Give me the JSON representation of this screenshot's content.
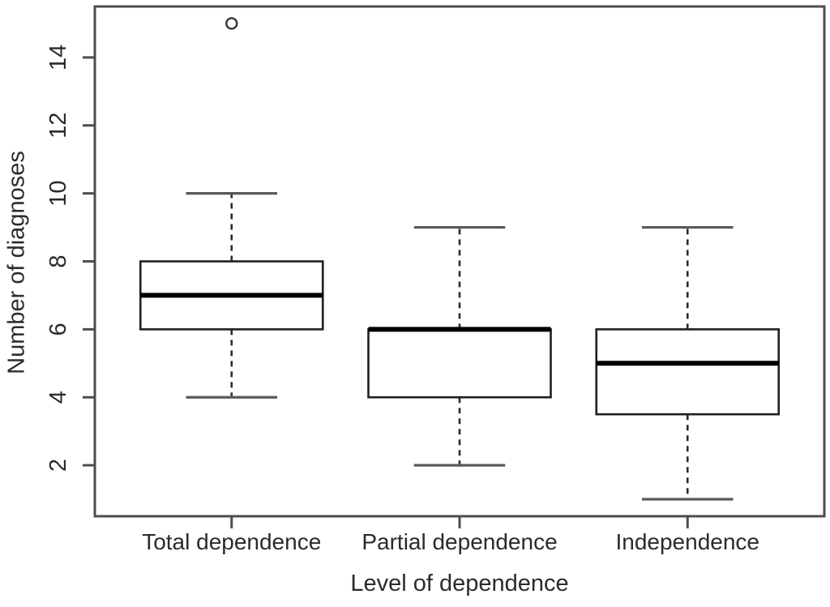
{
  "chart_data": {
    "type": "boxplot",
    "title": "",
    "xlabel": "Level of dependence",
    "ylabel": "Number of diagnoses",
    "categories": [
      "Total dependence",
      "Partial dependence",
      "Independence"
    ],
    "yticks": [
      2,
      4,
      6,
      8,
      10,
      12,
      14
    ],
    "ylim": [
      0.5,
      15.5
    ],
    "xlim": [
      0.4,
      3.6
    ],
    "positions": [
      1,
      2,
      3
    ],
    "box_width": 0.8,
    "cap_width": 0.4,
    "grid": false,
    "legend": false,
    "series": [
      {
        "category": "Total dependence",
        "whisker_low": 4,
        "q1": 6,
        "median": 7,
        "q3": 8,
        "whisker_high": 10,
        "outliers": [
          15
        ]
      },
      {
        "category": "Partial dependence",
        "whisker_low": 2,
        "q1": 4,
        "median": 6,
        "q3": 6,
        "whisker_high": 9,
        "outliers": []
      },
      {
        "category": "Independence",
        "whisker_low": 1,
        "q1": 3.5,
        "median": 5,
        "q3": 6,
        "whisker_high": 9,
        "outliers": []
      }
    ],
    "colors": {
      "background": "#ffffff",
      "axis": "#4d4d4d",
      "text": "#2b2b2b",
      "box_stroke": "#1f1f1f",
      "box_fill": "#ffffff",
      "median": "#000000",
      "whisker": "#2b2b2b",
      "whisker_cap": "#5a5a5a",
      "outlier": "#333333"
    }
  }
}
